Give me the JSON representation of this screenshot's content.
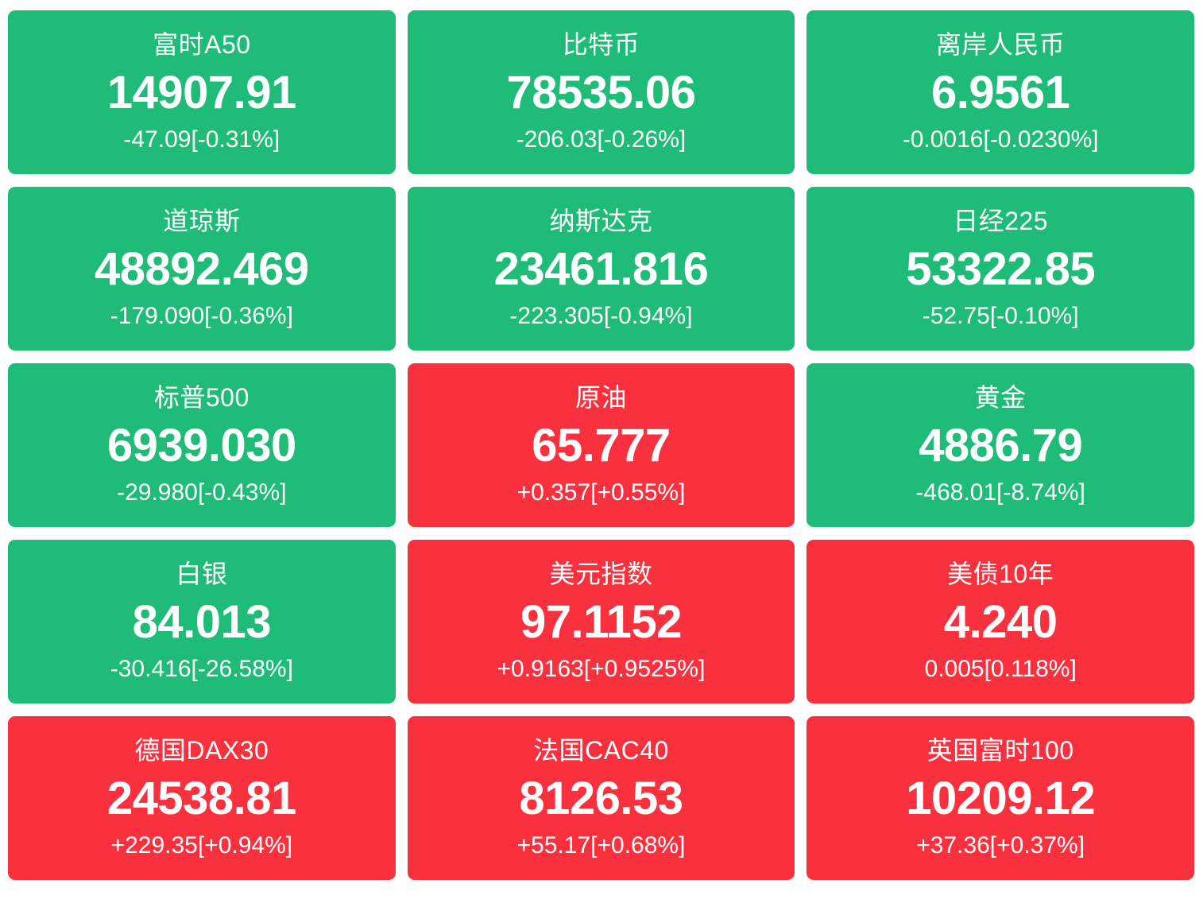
{
  "colors": {
    "down_bg": "#1EBC78",
    "up_bg": "#F9313E",
    "text": "#FFFFFF",
    "page_bg": "#FFFFFF"
  },
  "tiles": [
    {
      "name": "富时A50",
      "price": "14907.91",
      "change": "-47.09[-0.31%]",
      "trend": "down"
    },
    {
      "name": "比特币",
      "price": "78535.06",
      "change": "-206.03[-0.26%]",
      "trend": "down"
    },
    {
      "name": "离岸人民币",
      "price": "6.9561",
      "change": "-0.0016[-0.0230%]",
      "trend": "down"
    },
    {
      "name": "道琼斯",
      "price": "48892.469",
      "change": "-179.090[-0.36%]",
      "trend": "down"
    },
    {
      "name": "纳斯达克",
      "price": "23461.816",
      "change": "-223.305[-0.94%]",
      "trend": "down"
    },
    {
      "name": "日经225",
      "price": "53322.85",
      "change": "-52.75[-0.10%]",
      "trend": "down"
    },
    {
      "name": "标普500",
      "price": "6939.030",
      "change": "-29.980[-0.43%]",
      "trend": "down"
    },
    {
      "name": "原油",
      "price": "65.777",
      "change": "+0.357[+0.55%]",
      "trend": "up"
    },
    {
      "name": "黄金",
      "price": "4886.79",
      "change": "-468.01[-8.74%]",
      "trend": "down"
    },
    {
      "name": "白银",
      "price": "84.013",
      "change": "-30.416[-26.58%]",
      "trend": "down"
    },
    {
      "name": "美元指数",
      "price": "97.1152",
      "change": "+0.9163[+0.9525%]",
      "trend": "up"
    },
    {
      "name": "美债10年",
      "price": "4.240",
      "change": "0.005[0.118%]",
      "trend": "up"
    },
    {
      "name": "德国DAX30",
      "price": "24538.81",
      "change": "+229.35[+0.94%]",
      "trend": "up"
    },
    {
      "name": "法国CAC40",
      "price": "8126.53",
      "change": "+55.17[+0.68%]",
      "trend": "up"
    },
    {
      "name": "英国富时100",
      "price": "10209.12",
      "change": "+37.36[+0.37%]",
      "trend": "up"
    }
  ]
}
